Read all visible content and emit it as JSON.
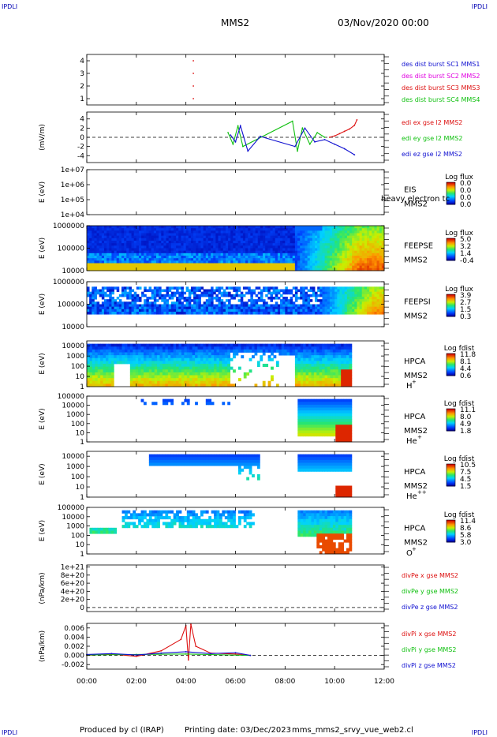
{
  "corner_label": "IPDLI",
  "header": {
    "spacecraft": "MMS2",
    "datetime": "03/Nov/2020 00:00"
  },
  "footer": {
    "produced_by": "Produced by cl (IRAP)",
    "printing_date": "Printing date: 03/Dec/2023",
    "filename": "mms_mms2_srvy_vue_web2.cl"
  },
  "colors": {
    "red": "#dd1010",
    "magenta": "#e000e0",
    "green": "#10c010",
    "blue": "#1010d0",
    "orange": "#ffa500"
  },
  "chart_data": [
    {
      "id": "des-dist-burst",
      "type": "scatter",
      "ylim": [
        0.5,
        4.5
      ],
      "yticks": [
        "1",
        "2",
        "3",
        "4"
      ],
      "ytick_values": [
        1,
        2,
        3,
        4
      ],
      "ylabel": "",
      "points": [
        {
          "x": 4.3,
          "y": 3
        },
        {
          "x": 4.3,
          "y": 2
        },
        {
          "x": 4.3,
          "y": 1
        },
        {
          "x": 4.3,
          "y": 4
        }
      ],
      "legend": [
        {
          "name": "des dist burst SC1 MMS1",
          "color": "#1010d0"
        },
        {
          "name": "des dist burst SC2 MMS2",
          "color": "#e000e0"
        },
        {
          "name": "des dist burst SC3 MMS3",
          "color": "#dd1010"
        },
        {
          "name": "des dist burst SC4 MMS4",
          "color": "#10c010"
        }
      ]
    },
    {
      "id": "edi-e-field",
      "type": "line",
      "ylabel": "(mV/m)",
      "ylim": [
        -5.5,
        5.5
      ],
      "yticks": [
        "4",
        "2",
        "0",
        "-2",
        "-4"
      ],
      "ytick_values": [
        4,
        2,
        0,
        -2,
        -4
      ],
      "zero_line": true,
      "series": [
        {
          "name": "edi ex gse l2 MMS2",
          "color": "#dd1010",
          "x": [
            9.8,
            10.0,
            10.2,
            10.4,
            10.6,
            10.8,
            10.9
          ],
          "y": [
            0.0,
            0.3,
            0.8,
            1.3,
            1.8,
            2.6,
            3.8
          ]
        },
        {
          "name": "edi ey gse l2 MMS2",
          "color": "#10c010",
          "x": [
            5.7,
            5.9,
            6.1,
            6.3,
            8.3,
            8.5,
            8.7,
            9.0,
            9.3,
            9.6
          ],
          "y": [
            1.0,
            -1.5,
            2.5,
            -2.0,
            3.5,
            -3.0,
            2.0,
            -1.5,
            1.0,
            0.0
          ]
        },
        {
          "name": "edi ez gse l2 MMS2",
          "color": "#1010d0",
          "x": [
            5.8,
            6.0,
            6.2,
            6.5,
            7.0,
            8.4,
            8.8,
            9.2,
            9.6,
            10.0,
            10.4,
            10.8
          ],
          "y": [
            0.5,
            -1.0,
            2.5,
            -3.0,
            0.2,
            -2.0,
            2.0,
            -1.0,
            -0.5,
            -1.5,
            -2.5,
            -3.8
          ]
        }
      ]
    },
    {
      "id": "eis-electron",
      "type": "heatmap",
      "ylabel": "E (eV)",
      "yscale": "log",
      "ylim": [
        10000,
        10000000
      ],
      "yticks": [
        "1e+07",
        "1e+06",
        "1e+05",
        "1e+04"
      ],
      "ytick_values": [
        10000000,
        1000000,
        100000,
        10000
      ],
      "instrument": "EIS",
      "instrument_sub": "MMS2",
      "overlay_label": "heavy electron tc",
      "colorbar_title": "Log flux",
      "colorbar_ticks": [
        "0.0",
        "0.0",
        "0.0",
        "0.0"
      ],
      "data": "none"
    },
    {
      "id": "feeps-e",
      "type": "heatmap",
      "ylabel": "E (eV)",
      "yscale": "log",
      "ylim": [
        10000,
        1000000
      ],
      "yticks": [
        "1000000",
        "100000",
        "10000"
      ],
      "ytick_values": [
        1000000,
        100000,
        10000
      ],
      "instrument": "FEEPSE",
      "instrument_sub": "MMS2",
      "colorbar_title": "Log flux",
      "colorbar_ticks": [
        "5.0",
        "3.2",
        "1.4",
        "-0.4"
      ],
      "cmin": -0.4,
      "cmax": 5.0
    },
    {
      "id": "feeps-i",
      "type": "heatmap",
      "ylabel": "E (eV)",
      "yscale": "log",
      "ylim": [
        10000,
        1000000
      ],
      "yticks": [
        "1000000",
        "100000",
        "10000"
      ],
      "ytick_values": [
        1000000,
        100000,
        10000
      ],
      "instrument": "FEEPSI",
      "instrument_sub": "MMS2",
      "colorbar_title": "Log flux",
      "colorbar_ticks": [
        "3.9",
        "2.7",
        "1.5",
        "0.3"
      ],
      "cmin": 0.3,
      "cmax": 3.9
    },
    {
      "id": "hpca-h",
      "type": "heatmap",
      "ylabel": "E (eV)",
      "yscale": "log",
      "ylim": [
        1,
        30000
      ],
      "yticks": [
        "10000",
        "1000",
        "100",
        "10",
        "1"
      ],
      "ytick_values": [
        10000,
        1000,
        100,
        10,
        1
      ],
      "instrument": "HPCA",
      "instrument_sub": "MMS2",
      "species": "H",
      "species_sup": "+",
      "colorbar_title": "Log fdist",
      "colorbar_ticks": [
        "11.8",
        "8.1",
        "4.4",
        "0.6"
      ],
      "cmin": 0.6,
      "cmax": 11.8
    },
    {
      "id": "hpca-he1",
      "type": "heatmap",
      "ylabel": "E (eV)",
      "yscale": "log",
      "ylim": [
        1,
        100000
      ],
      "yticks": [
        "100000",
        "10000",
        "1000",
        "100",
        "10",
        "1"
      ],
      "ytick_values": [
        100000,
        10000,
        1000,
        100,
        10,
        1
      ],
      "instrument": "HPCA",
      "instrument_sub": "MMS2",
      "species": "He",
      "species_sup": "+",
      "colorbar_title": "Log fdist",
      "colorbar_ticks": [
        "11.1",
        "8.0",
        "4.9",
        "1.8"
      ],
      "cmin": 1.8,
      "cmax": 11.1
    },
    {
      "id": "hpca-he2",
      "type": "heatmap",
      "ylabel": "E (eV)",
      "yscale": "log",
      "ylim": [
        1,
        30000
      ],
      "yticks": [
        "10000",
        "1000",
        "100",
        "10",
        "1"
      ],
      "ytick_values": [
        10000,
        1000,
        100,
        10,
        1
      ],
      "instrument": "HPCA",
      "instrument_sub": "MMS2",
      "species": "He",
      "species_sup": "++",
      "colorbar_title": "Log fdist",
      "colorbar_ticks": [
        "10.5",
        "7.5",
        "4.5",
        "1.5"
      ],
      "cmin": 1.5,
      "cmax": 10.5
    },
    {
      "id": "hpca-o",
      "type": "heatmap",
      "ylabel": "E (eV)",
      "yscale": "log",
      "ylim": [
        1,
        100000
      ],
      "yticks": [
        "100000",
        "10000",
        "1000",
        "100",
        "10",
        "1"
      ],
      "ytick_values": [
        100000,
        10000,
        1000,
        100,
        10,
        1
      ],
      "instrument": "HPCA",
      "instrument_sub": "MMS2",
      "species": "O",
      "species_sup": "+",
      "colorbar_title": "Log fdist",
      "colorbar_ticks": [
        "11.4",
        "8.6",
        "5.8",
        "3.0"
      ],
      "cmin": 3.0,
      "cmax": 11.4
    },
    {
      "id": "divpe",
      "type": "line",
      "ylabel": "(nPa/km)",
      "ylim": [
        -1e+20,
        1.05e+21
      ],
      "yticks": [
        "1e+21",
        "8e+20",
        "6e+20",
        "4e+20",
        "2e+20",
        "0"
      ],
      "ytick_values": [
        1e+21,
        8e+20,
        6e+20,
        4e+20,
        2e+20,
        0
      ],
      "zero_line": true,
      "series": [
        {
          "name": "divPe x gse MMS2",
          "color": "#dd1010",
          "x": [],
          "y": []
        },
        {
          "name": "divPe y gse MMS2",
          "color": "#10c010",
          "x": [],
          "y": []
        },
        {
          "name": "divPe z gse MMS2",
          "color": "#1010d0",
          "x": [],
          "y": []
        }
      ]
    },
    {
      "id": "divpi",
      "type": "line",
      "ylabel": "(nPa/km)",
      "ylim": [
        -0.003,
        0.007
      ],
      "yticks": [
        "0.006",
        "0.004",
        "0.002",
        "0.000",
        "-0.002"
      ],
      "ytick_values": [
        0.006,
        0.004,
        0.002,
        0.0,
        -0.002
      ],
      "zero_line": true,
      "series": [
        {
          "name": "divPi x gse MMS2",
          "color": "#dd1010",
          "x": [
            0.0,
            1.0,
            2.0,
            3.0,
            3.8,
            4.0,
            4.1,
            4.2,
            4.4,
            5.0,
            6.0,
            6.6
          ],
          "y": [
            0.0,
            0.0003,
            -0.0002,
            0.001,
            0.0035,
            0.0065,
            -0.001,
            0.0068,
            0.002,
            0.0005,
            0.0003,
            0.0
          ]
        },
        {
          "name": "divPi y gse MMS2",
          "color": "#10c010",
          "x": [
            0.0,
            2.0,
            4.0,
            6.6
          ],
          "y": [
            0.0001,
            0.0002,
            0.0003,
            0.0
          ]
        },
        {
          "name": "divPi z gse MMS2",
          "color": "#1010d0",
          "x": [
            0.0,
            1.0,
            2.0,
            3.0,
            4.0,
            5.0,
            6.0,
            6.6
          ],
          "y": [
            0.0002,
            0.0004,
            0.0001,
            0.0005,
            0.0008,
            0.0004,
            0.0006,
            0.0
          ]
        }
      ]
    }
  ],
  "x_axis": {
    "xlim": [
      0,
      12
    ],
    "ticks": [
      "00:00",
      "02:00",
      "04:00",
      "06:00",
      "08:00",
      "10:00",
      "12:00"
    ],
    "tick_values": [
      0,
      2,
      4,
      6,
      8,
      10,
      12
    ]
  }
}
